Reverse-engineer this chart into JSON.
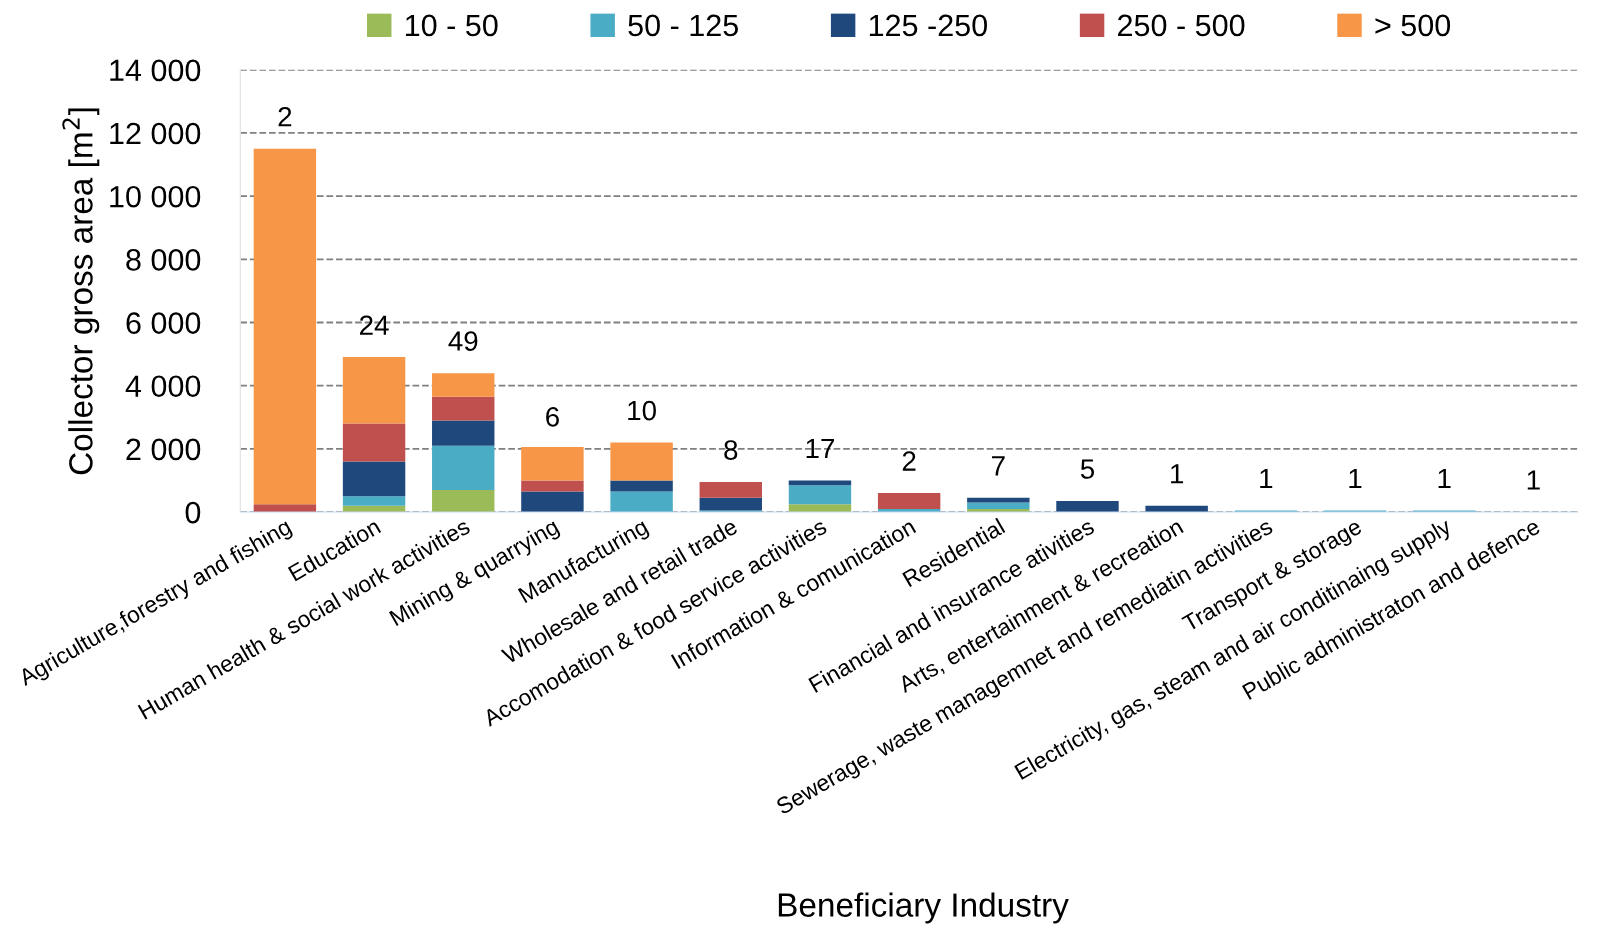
{
  "chart_data": {
    "type": "bar",
    "stacked": true,
    "xlabel": "Beneficiary Industry",
    "ylabel": "Collector gross area [m$^{2}$]",
    "categories": [
      "Agriculture,forestry and fishing",
      "Education",
      "Human health & social work activities",
      "Mining & quarrying",
      "Manufacturing",
      "Wholesale and retail trade",
      "Accomodation & food service activities",
      "Information & comunication",
      "Residential",
      "Financial and insurance ativities",
      "Arts, entertainment & recreation",
      "Sewerage, waste managemnet and remediatin activities",
      "Transport & storage",
      "Electricity, gas, steam and air conditinaing supply",
      "Public administraton and defence"
    ],
    "series": [
      {
        "name": "10 - 50",
        "color": "#9bbb59",
        "values": [
          null,
          200,
          700,
          null,
          null,
          null,
          250,
          null,
          100,
          null,
          null,
          null,
          null,
          null,
          null
        ]
      },
      {
        "name": "50 - 125",
        "color": "#4bacc6",
        "values": [
          null,
          300,
          1400,
          null,
          650,
          50,
          600,
          100,
          200,
          null,
          null,
          50,
          50,
          50,
          null
        ]
      },
      {
        "name": "125 -250",
        "color": "#1f497d",
        "values": [
          null,
          1100,
          800,
          650,
          350,
          400,
          150,
          null,
          150,
          350,
          200,
          null,
          null,
          null,
          null
        ]
      },
      {
        "name": "250 - 500",
        "color": "#c0504d",
        "values": [
          250,
          1200,
          750,
          350,
          null,
          500,
          null,
          500,
          null,
          null,
          null,
          null,
          null,
          null,
          null
        ]
      },
      {
        "name": "> 500",
        "color": "#f79646",
        "values": [
          11250,
          2110,
          740,
          1060,
          1200,
          null,
          null,
          null,
          null,
          null,
          null,
          null,
          null,
          null,
          null
        ]
      }
    ],
    "ylim": [
      0,
      14000
    ],
    "yticks": [
      0,
      {
        "value": 2000,
        "label": "2 000"
      },
      {
        "value": 4000,
        "label": "4 000"
      },
      {
        "value": 6000,
        "label": "6 000"
      },
      {
        "value": 8000,
        "label": "8 000"
      },
      {
        "value": 10000,
        "label": "10 000"
      },
      {
        "value": 12000,
        "label": "12 000"
      },
      {
        "value": 14000,
        "label": "14 000"
      }
    ],
    "grid": "y",
    "legend": "top",
    "annotations": [
      {
        "text": "2",
        "x": "Agriculture,forestry and fishing",
        "y": 11500
      },
      {
        "text": "24",
        "x": "Education",
        "y": 4900
      },
      {
        "text": "49",
        "x": "Human health & social work activities",
        "y": 4400
      },
      {
        "text": "6",
        "x": "Mining & quarrying",
        "y": 2000
      },
      {
        "text": "10",
        "x": "Manufacturing",
        "y": 2200
      },
      {
        "text": "8",
        "x": "Wholesale and retail trade",
        "y": 950
      },
      {
        "text": "17",
        "x": "Accomodation & food service activities",
        "y": 1000
      },
      {
        "text": "2",
        "x": "Information & comunication",
        "y": 600
      },
      {
        "text": "7",
        "x": "Residential",
        "y": 450
      },
      {
        "text": "5",
        "x": "Financial and insurance ativities",
        "y": 350
      },
      {
        "text": "1",
        "x": "Arts, entertainment & recreation",
        "y": 200
      },
      {
        "text": "1",
        "x": "Sewerage, waste managemnet and remediatin activities",
        "y": 50
      },
      {
        "text": "1",
        "x": "Transport & storage",
        "y": 50
      },
      {
        "text": "1",
        "x": "Electricity, gas, steam and air conditinaing supply",
        "y": 50
      },
      "1"
    ]
  }
}
